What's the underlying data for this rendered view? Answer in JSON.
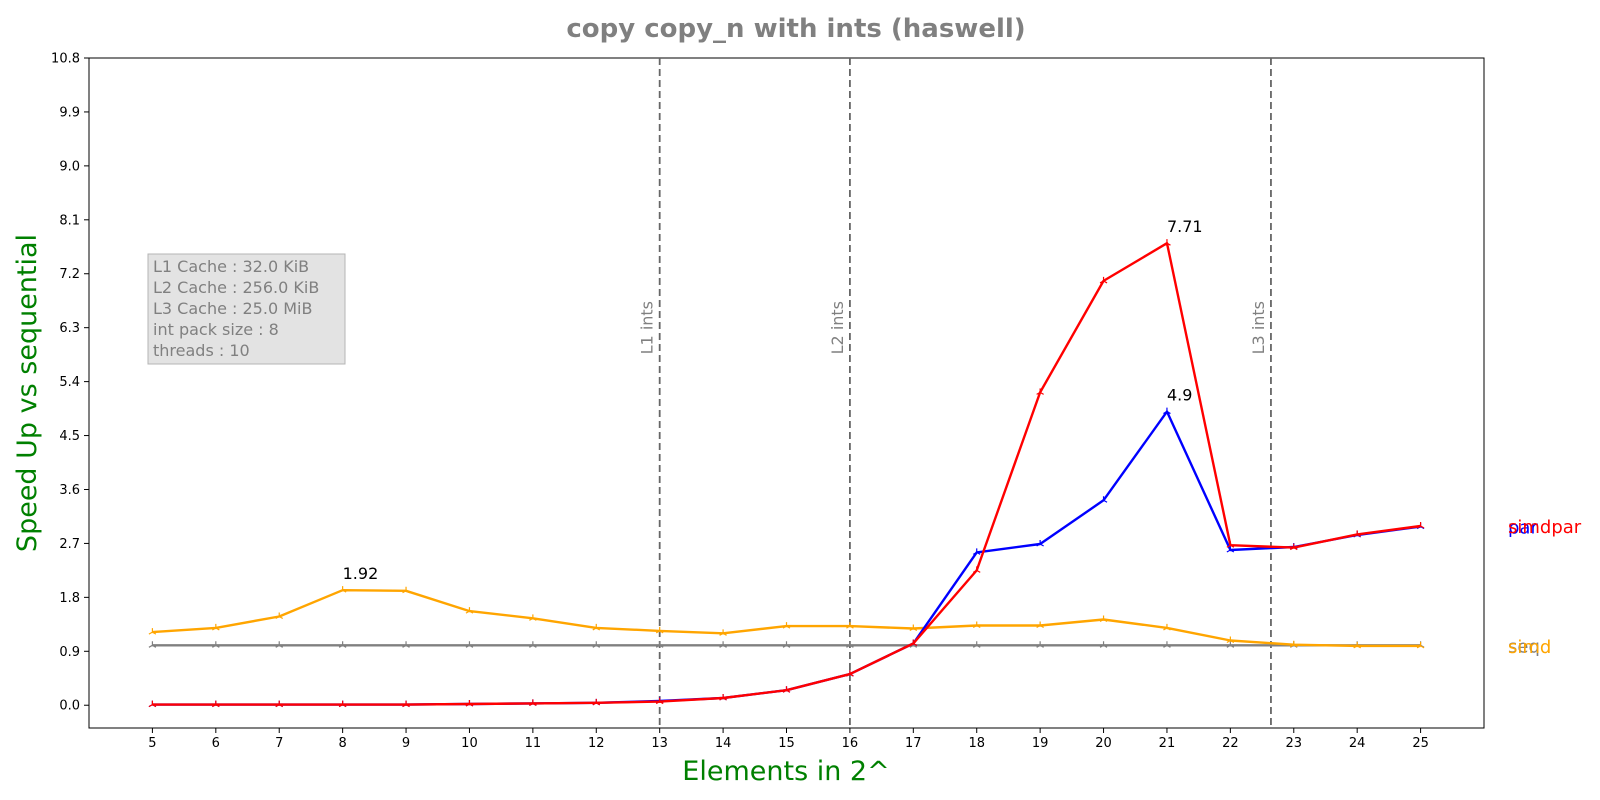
{
  "chart_data": {
    "type": "line",
    "title": "copy copy_n with ints  (haswell)",
    "xlabel": "Elements in 2^",
    "ylabel": "Speed Up vs sequential",
    "x": [
      5,
      6,
      7,
      8,
      9,
      10,
      11,
      12,
      13,
      14,
      15,
      16,
      17,
      18,
      19,
      20,
      21,
      22,
      23,
      24,
      25
    ],
    "xlim": [
      4,
      26
    ],
    "ylim": [
      -0.38,
      10.8
    ],
    "yticks": [
      0.0,
      0.9,
      1.8,
      2.7,
      3.6,
      4.5,
      5.4,
      6.3,
      7.2,
      8.1,
      9.0,
      9.9,
      10.8
    ],
    "ytick_labels": [
      "0.0",
      "0.9",
      "1.8",
      "2.7",
      "3.6",
      "4.5",
      "5.4",
      "6.3",
      "7.2",
      "8.1",
      "9.0",
      "9.9",
      "10.8"
    ],
    "grid": false,
    "series": [
      {
        "name": "seq",
        "color": "#808080",
        "values": [
          1.0,
          1.0,
          1.0,
          1.0,
          1.0,
          1.0,
          1.0,
          1.0,
          1.0,
          1.0,
          1.0,
          1.0,
          1.0,
          1.0,
          1.0,
          1.0,
          1.0,
          1.0,
          1.0,
          1.0,
          1.0
        ]
      },
      {
        "name": "simd",
        "color": "#ffa500",
        "values": [
          1.22,
          1.29,
          1.48,
          1.92,
          1.91,
          1.57,
          1.45,
          1.29,
          1.24,
          1.2,
          1.32,
          1.32,
          1.28,
          1.33,
          1.33,
          1.43,
          1.29,
          1.08,
          1.01,
          0.99,
          0.99
        ]
      },
      {
        "name": "par",
        "color": "#0000ff",
        "values": [
          0.01,
          0.01,
          0.01,
          0.01,
          0.01,
          0.02,
          0.03,
          0.04,
          0.07,
          0.12,
          0.25,
          0.52,
          1.03,
          2.55,
          2.69,
          3.42,
          4.9,
          2.59,
          2.64,
          2.84,
          2.98
        ]
      },
      {
        "name": "simdpar",
        "color": "#ff0000",
        "values": [
          0.01,
          0.01,
          0.01,
          0.01,
          0.01,
          0.02,
          0.03,
          0.04,
          0.06,
          0.12,
          0.25,
          0.52,
          1.03,
          2.25,
          5.22,
          7.08,
          7.71,
          2.67,
          2.63,
          2.85,
          2.99
        ]
      }
    ],
    "vlines": [
      {
        "x": 13,
        "label": "L1 ints"
      },
      {
        "x": 16,
        "label": "L2 ints"
      },
      {
        "x": 22.64,
        "label": "L3 ints"
      }
    ],
    "annotations": [
      {
        "x": 8,
        "y": 1.92,
        "text": "1.92"
      },
      {
        "x": 21,
        "y": 4.9,
        "text": "4.9"
      },
      {
        "x": 21,
        "y": 7.71,
        "text": "7.71"
      }
    ],
    "info_box": [
      "L1 Cache : 32.0 KiB",
      "L2 Cache : 256.0 KiB",
      "L3 Cache : 25.0 MiB",
      "int pack size : 8",
      "threads : 10"
    ],
    "end_labels": [
      {
        "text": "par",
        "color": "#0000ff",
        "y": 2.98
      },
      {
        "text": "simdpar",
        "color": "#ff0000",
        "y": 2.99
      },
      {
        "text": "seq",
        "color": "#808080",
        "y": 1.0
      },
      {
        "text": "simd",
        "color": "#ffa500",
        "y": 0.99
      }
    ]
  }
}
